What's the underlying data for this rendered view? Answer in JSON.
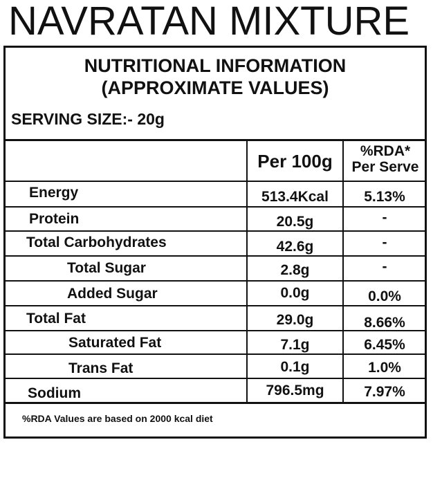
{
  "product_name": "NAVRATAN MIXTURE",
  "panel": {
    "heading_line1": "NUTRITIONAL INFORMATION",
    "heading_line2": "(APPROXIMATE VALUES)",
    "serving_size": "SERVING SIZE:- 20g",
    "columns": {
      "per_100g": "Per 100g",
      "rda_line1": "%RDA*",
      "rda_line2": "Per Serve"
    },
    "rows": [
      {
        "nutrient": "Energy",
        "per_100g": "513.4Kcal",
        "rda": "5.13%"
      },
      {
        "nutrient": "Protein",
        "per_100g": "20.5g",
        "rda": "-"
      },
      {
        "nutrient": "Total Carbohydrates",
        "per_100g": "42.6g",
        "rda": "-"
      },
      {
        "nutrient": "Total Sugar",
        "per_100g": "2.8g",
        "rda": "-"
      },
      {
        "nutrient": "Added Sugar",
        "per_100g": "0.0g",
        "rda": "0.0%"
      },
      {
        "nutrient": "Total Fat",
        "per_100g": "29.0g",
        "rda": "8.66%"
      },
      {
        "nutrient": "Saturated Fat",
        "per_100g": "7.1g",
        "rda": "6.45%"
      },
      {
        "nutrient": "Trans Fat",
        "per_100g": "0.1g",
        "rda": "1.0%"
      },
      {
        "nutrient": "Sodium",
        "per_100g": "796.5mg",
        "rda": "7.97%"
      }
    ],
    "footnote": "%RDA Values are based on 2000 kcal diet"
  }
}
